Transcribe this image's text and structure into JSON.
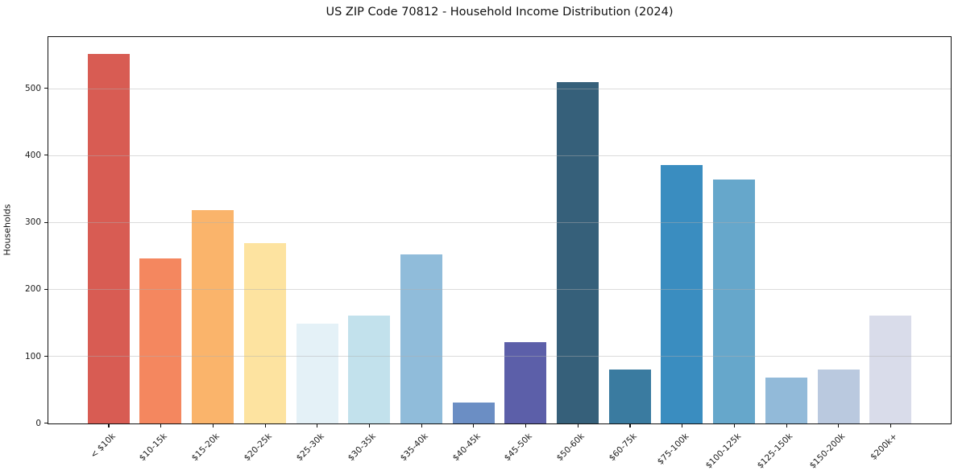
{
  "chart_data": {
    "type": "bar",
    "title": "US ZIP Code 70812 - Household Income Distribution (2024)",
    "ylabel": "Households",
    "xlabel": "",
    "categories": [
      "< $10k",
      "$10-15k",
      "$15-20k",
      "$20-25k",
      "$25-30k",
      "$30-35k",
      "$35-40k",
      "$40-45k",
      "$45-50k",
      "$50-60k",
      "$60-75k",
      "$75-100k",
      "$100-125k",
      "$125-150k",
      "$150-200k",
      "$200k+"
    ],
    "values": [
      552,
      247,
      318,
      269,
      149,
      161,
      253,
      31,
      121,
      510,
      80,
      386,
      364,
      68,
      80,
      161
    ],
    "bar_colors": [
      "#d85c53",
      "#f4875f",
      "#fab46b",
      "#fde3a0",
      "#e4f1f7",
      "#c2e1ec",
      "#90bcda",
      "#6b8ec4",
      "#5c5fa9",
      "#36607a",
      "#3a7ba0",
      "#3a8dc0",
      "#66a7cb",
      "#92bad9",
      "#bac9df",
      "#d9dcea"
    ],
    "yticks": [
      0,
      100,
      200,
      300,
      400,
      500
    ],
    "ylim": [
      0,
      579
    ],
    "grid": "horizontal-only",
    "legend": "none",
    "background": "#ffffff",
    "spine_color": "#111111",
    "gridline_color": "#e4e4e4",
    "text_color": "#1a1a1a"
  }
}
